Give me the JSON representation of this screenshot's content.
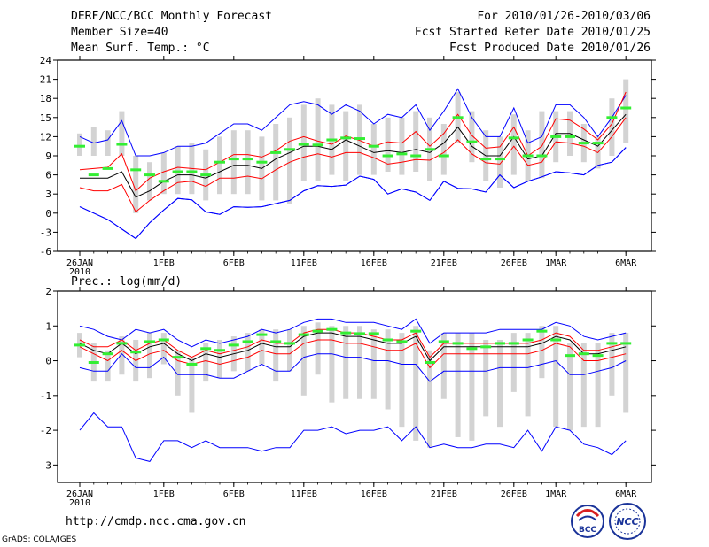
{
  "header": {
    "title": "DERF/NCC/BCC Monthly Forecast",
    "member_size": "Member Size=40",
    "variable": "Mean Surf. Temp.: °C",
    "period": "For 2010/01/26-2010/03/06",
    "fcst_started": "Fcst Started Refer Date 2010/01/25",
    "fcst_produced": "Fcst Produced Date 2010/01/26"
  },
  "footer": {
    "url": "http://cmdp.ncc.cma.gov.cn",
    "grads": "GrADS: COLA/IGES",
    "logo_bcc": "BCC",
    "logo_ncc": "NCC"
  },
  "colors": {
    "envelope": "#0000ff",
    "spread": "#ff0000",
    "mean": "#000000",
    "bar": "#d3d3d3",
    "marker": "#33ee33"
  },
  "chart_data": [
    {
      "type": "line",
      "title": "Mean Surf. Temp.: °C",
      "ylim": [
        -6,
        24
      ],
      "yticks": [
        -6,
        -3,
        0,
        3,
        6,
        9,
        12,
        15,
        18,
        21,
        24
      ],
      "x_tick_labels": [
        {
          "day": 1,
          "label": "26JAN"
        },
        {
          "day": 7,
          "label": "1FEB"
        },
        {
          "day": 12,
          "label": "6FEB"
        },
        {
          "day": 17,
          "label": "11FEB"
        },
        {
          "day": 22,
          "label": "16FEB"
        },
        {
          "day": 27,
          "label": "21FEB"
        },
        {
          "day": 32,
          "label": "26FEB"
        },
        {
          "day": 35,
          "label": "1MAR"
        },
        {
          "day": 40,
          "label": "6MAR"
        }
      ],
      "year_label": "2010",
      "series": [
        {
          "name": "max",
          "values": [
            1,
            0,
            -1,
            -2.5,
            -4,
            -1.5,
            0.5,
            2.3,
            2.1,
            0.2,
            -0.2,
            1,
            0.9,
            1,
            1.5,
            2,
            3.5,
            4.3,
            4.2,
            4.4,
            5.8,
            5.3,
            3,
            3.8,
            3.3,
            2,
            5,
            3.9,
            3.8,
            3.3,
            6,
            4,
            5,
            5.7,
            6.5,
            6.3,
            6,
            7.5,
            8,
            10.3
          ]
        },
        {
          "name": "upper",
          "values": [
            12,
            11,
            11.5,
            14.5,
            9,
            9,
            9.5,
            10.5,
            10.5,
            11,
            12.5,
            14,
            14,
            13,
            15,
            17,
            17.5,
            17,
            15.5,
            17,
            16,
            14,
            15.5,
            15,
            17,
            13,
            16,
            19.5,
            15,
            12,
            12,
            16.5,
            11,
            12,
            17,
            17,
            15,
            12,
            15,
            18.5
          ]
        },
        {
          "name": "spread_max",
          "values": [
            6.8,
            7,
            7.2,
            9.3,
            3.5,
            5.5,
            6.5,
            7.2,
            7,
            6.8,
            8,
            9.2,
            9.2,
            8.8,
            9.8,
            11.3,
            12,
            11.3,
            10.8,
            12.1,
            11.4,
            10.5,
            11.2,
            11,
            12.8,
            10.5,
            12.5,
            15.5,
            12.2,
            10.2,
            10.4,
            13.5,
            9,
            10.5,
            14.8,
            14.6,
            13.2,
            11.5,
            14,
            19
          ]
        },
        {
          "name": "mean",
          "values": [
            5.5,
            5.5,
            5.5,
            6.5,
            2.5,
            3.5,
            5,
            6,
            6,
            5.5,
            6.5,
            7.5,
            7.5,
            7,
            8.5,
            9.5,
            10.5,
            10.5,
            10,
            11.5,
            10.5,
            9.5,
            9.8,
            9.5,
            10,
            9.5,
            11,
            13.5,
            10.5,
            9,
            9,
            12,
            8.5,
            9,
            12.5,
            12.5,
            11.5,
            10.5,
            13,
            15.5
          ]
        },
        {
          "name": "spread_min",
          "values": [
            4,
            3.5,
            3.5,
            4.5,
            0.2,
            2,
            3.5,
            4.8,
            5,
            4.2,
            5.5,
            5.5,
            5.8,
            5.4,
            6.8,
            8,
            8.8,
            9.3,
            8.8,
            9.5,
            9.5,
            8.7,
            7.7,
            8,
            8.4,
            8.3,
            9.5,
            11.5,
            9.3,
            7.9,
            7.7,
            10.5,
            7.5,
            8,
            11.2,
            11,
            10.5,
            9.5,
            12,
            15
          ]
        },
        {
          "name": "min",
          "values": [
            1,
            0,
            -1,
            -2.5,
            -4,
            -1.5,
            0.5,
            2.3,
            2.1,
            0.2,
            -0.2,
            1,
            0.9,
            1,
            1.5,
            2,
            3.5,
            4.3,
            4.2,
            4.4,
            5.8,
            5.3,
            3,
            3.8,
            3.3,
            2,
            5,
            3.9,
            3.8,
            3.3,
            6,
            4,
            5,
            5.7,
            6.5,
            6.3,
            6,
            7.5,
            8,
            10.3
          ]
        }
      ],
      "obs_markers": [
        10.5,
        6,
        7,
        10.8,
        6.8,
        6,
        5,
        6.5,
        6.5,
        6,
        8,
        8.5,
        8.5,
        8,
        9.5,
        10,
        10.8,
        10.7,
        11.5,
        11.8,
        11.7,
        10.5,
        9,
        9.3,
        9,
        10,
        9,
        15,
        11.2,
        8.5,
        8.5,
        11.8,
        9,
        9,
        12,
        12,
        11,
        11,
        15,
        16.5
      ],
      "bars": [
        [
          9,
          12.5
        ],
        [
          9,
          13.5
        ],
        [
          9,
          13
        ],
        [
          9,
          16
        ],
        [
          0,
          9
        ],
        [
          2,
          8
        ],
        [
          3,
          9.5
        ],
        [
          3,
          10.5
        ],
        [
          3,
          11
        ],
        [
          2,
          10
        ],
        [
          3,
          12
        ],
        [
          3,
          13
        ],
        [
          3,
          13
        ],
        [
          2,
          12
        ],
        [
          2,
          14
        ],
        [
          1.5,
          15
        ],
        [
          5,
          17
        ],
        [
          5,
          18
        ],
        [
          6,
          17
        ],
        [
          5,
          16
        ],
        [
          6,
          17
        ],
        [
          6,
          14
        ],
        [
          6.5,
          15
        ],
        [
          6,
          15
        ],
        [
          6.5,
          16
        ],
        [
          5,
          15
        ],
        [
          6,
          14
        ],
        [
          11,
          19
        ],
        [
          8,
          16
        ],
        [
          5,
          13
        ],
        [
          4,
          12
        ],
        [
          6,
          15.5
        ],
        [
          5,
          13
        ],
        [
          5.5,
          16
        ],
        [
          8,
          16
        ],
        [
          9,
          16
        ],
        [
          8,
          14
        ],
        [
          7,
          12
        ],
        [
          9,
          18
        ],
        [
          11,
          21
        ]
      ]
    },
    {
      "type": "line",
      "title": "Prec.: log(mm/d)",
      "ylim": [
        -3.5,
        2
      ],
      "yticks": [
        -3,
        -2,
        -1,
        0,
        1,
        2
      ],
      "x_tick_labels": [
        {
          "day": 1,
          "label": "26JAN"
        },
        {
          "day": 7,
          "label": "1FEB"
        },
        {
          "day": 12,
          "label": "6FEB"
        },
        {
          "day": 17,
          "label": "11FEB"
        },
        {
          "day": 22,
          "label": "16FEB"
        },
        {
          "day": 27,
          "label": "21FEB"
        },
        {
          "day": 32,
          "label": "26FEB"
        },
        {
          "day": 35,
          "label": "1MAR"
        },
        {
          "day": 40,
          "label": "6MAR"
        }
      ],
      "year_label": "2010",
      "series": [
        {
          "name": "max",
          "values": [
            -2,
            -1.5,
            -1.9,
            -1.9,
            -2.8,
            -2.9,
            -2.3,
            -2.3,
            -2.5,
            -2.3,
            -2.5,
            -2.5,
            -2.5,
            -2.6,
            -2.5,
            -2.5,
            -2.0,
            -2.0,
            -1.9,
            -2.1,
            -2.0,
            -2.0,
            -1.9,
            -2.3,
            -1.9,
            -2.5,
            -2.4,
            -2.5,
            -2.5,
            -2.4,
            -2.4,
            -2.5,
            -2.0,
            -2.6,
            -1.9,
            -2.0,
            -2.4,
            -2.5,
            -2.7,
            -2.3
          ]
        },
        {
          "name": "upper",
          "values": [
            1.0,
            0.9,
            0.7,
            0.6,
            0.9,
            0.8,
            0.9,
            0.6,
            0.4,
            0.6,
            0.5,
            0.6,
            0.7,
            0.9,
            0.8,
            0.9,
            1.1,
            1.2,
            1.2,
            1.1,
            1.1,
            1.1,
            1.0,
            0.9,
            1.2,
            0.5,
            0.8,
            0.8,
            0.8,
            0.8,
            0.9,
            0.9,
            0.9,
            0.9,
            1.1,
            1.0,
            0.7,
            0.6,
            0.7,
            0.8
          ]
        },
        {
          "name": "spread_max",
          "values": [
            0.6,
            0.4,
            0.4,
            0.6,
            0.3,
            0.5,
            0.6,
            0.3,
            0.1,
            0.3,
            0.2,
            0.3,
            0.4,
            0.6,
            0.5,
            0.5,
            0.8,
            0.9,
            0.9,
            0.8,
            0.8,
            0.7,
            0.6,
            0.6,
            0.8,
            0.1,
            0.5,
            0.5,
            0.5,
            0.5,
            0.5,
            0.5,
            0.5,
            0.6,
            0.8,
            0.7,
            0.3,
            0.3,
            0.4,
            0.5
          ]
        },
        {
          "name": "mean",
          "values": [
            0.5,
            0.3,
            0.2,
            0.5,
            0.2,
            0.4,
            0.5,
            0.2,
            0.0,
            0.2,
            0.1,
            0.2,
            0.3,
            0.5,
            0.4,
            0.4,
            0.7,
            0.8,
            0.8,
            0.7,
            0.7,
            0.6,
            0.5,
            0.5,
            0.7,
            0.0,
            0.4,
            0.4,
            0.4,
            0.4,
            0.4,
            0.4,
            0.4,
            0.5,
            0.7,
            0.6,
            0.2,
            0.2,
            0.3,
            0.4
          ]
        },
        {
          "name": "spread_min",
          "values": [
            0.4,
            0.2,
            0.0,
            0.3,
            0.0,
            0.2,
            0.3,
            0.0,
            -0.1,
            0.0,
            -0.1,
            0.0,
            0.1,
            0.3,
            0.2,
            0.2,
            0.5,
            0.6,
            0.6,
            0.5,
            0.5,
            0.4,
            0.3,
            0.3,
            0.5,
            -0.2,
            0.2,
            0.2,
            0.2,
            0.2,
            0.2,
            0.2,
            0.2,
            0.3,
            0.5,
            0.4,
            0.0,
            0.0,
            0.1,
            0.2
          ]
        },
        {
          "name": "min",
          "values": [
            -0.2,
            -0.3,
            -0.3,
            0.2,
            -0.2,
            -0.2,
            0.1,
            -0.4,
            -0.4,
            -0.4,
            -0.5,
            -0.5,
            -0.3,
            -0.1,
            -0.3,
            -0.3,
            0.1,
            0.2,
            0.2,
            0.1,
            0.1,
            0.0,
            0.0,
            -0.1,
            -0.1,
            -0.6,
            -0.3,
            -0.3,
            -0.3,
            -0.3,
            -0.2,
            -0.2,
            -0.2,
            -0.1,
            0.0,
            -0.4,
            -0.4,
            -0.3,
            -0.2,
            0.0
          ]
        }
      ],
      "obs_markers": [
        0.45,
        -0.05,
        0.2,
        0.5,
        0.25,
        0.55,
        0.6,
        0.1,
        -0.1,
        0.35,
        0.3,
        0.45,
        0.55,
        0.75,
        0.55,
        0.5,
        0.75,
        0.85,
        0.9,
        0.8,
        0.78,
        0.78,
        0.6,
        0.55,
        0.85,
        -0.05,
        0.55,
        0.5,
        0.35,
        0.4,
        0.5,
        0.5,
        0.6,
        0.85,
        0.6,
        0.15,
        0.2,
        0.15,
        0.5,
        0.5
      ],
      "bars": [
        [
          0.1,
          0.8
        ],
        [
          -0.6,
          0.5
        ],
        [
          -0.6,
          0.3
        ],
        [
          -0.4,
          0.7
        ],
        [
          -0.6,
          0.6
        ],
        [
          -0.5,
          0.8
        ],
        [
          -0.1,
          0.8
        ],
        [
          -1,
          0.3
        ],
        [
          -1.5,
          0.1
        ],
        [
          -0.6,
          0.5
        ],
        [
          -0.5,
          0.6
        ],
        [
          -0.3,
          0.7
        ],
        [
          -0.3,
          0.8
        ],
        [
          -0.1,
          0.9
        ],
        [
          -0.6,
          0.9
        ],
        [
          -0.3,
          0.9
        ],
        [
          -1,
          1
        ],
        [
          -0.4,
          1.1
        ],
        [
          -1.2,
          1
        ],
        [
          -1.1,
          1
        ],
        [
          -1.1,
          1
        ],
        [
          -1.1,
          0.9
        ],
        [
          -1.4,
          0.9
        ],
        [
          -1.9,
          0.8
        ],
        [
          -2.3,
          1
        ],
        [
          -2.5,
          0.3
        ],
        [
          -1.1,
          0.8
        ],
        [
          -2.2,
          0.8
        ],
        [
          -2.3,
          0.8
        ],
        [
          -1.6,
          0.6
        ],
        [
          -1.9,
          0.6
        ],
        [
          -0.9,
          0.8
        ],
        [
          -1.6,
          0.8
        ],
        [
          -0.5,
          1
        ],
        [
          -1.9,
          1
        ],
        [
          -2,
          0.5
        ],
        [
          -1.9,
          0.5
        ],
        [
          -1.9,
          0.5
        ],
        [
          -1,
          0.8
        ],
        [
          -1.5,
          0.8
        ]
      ]
    }
  ]
}
